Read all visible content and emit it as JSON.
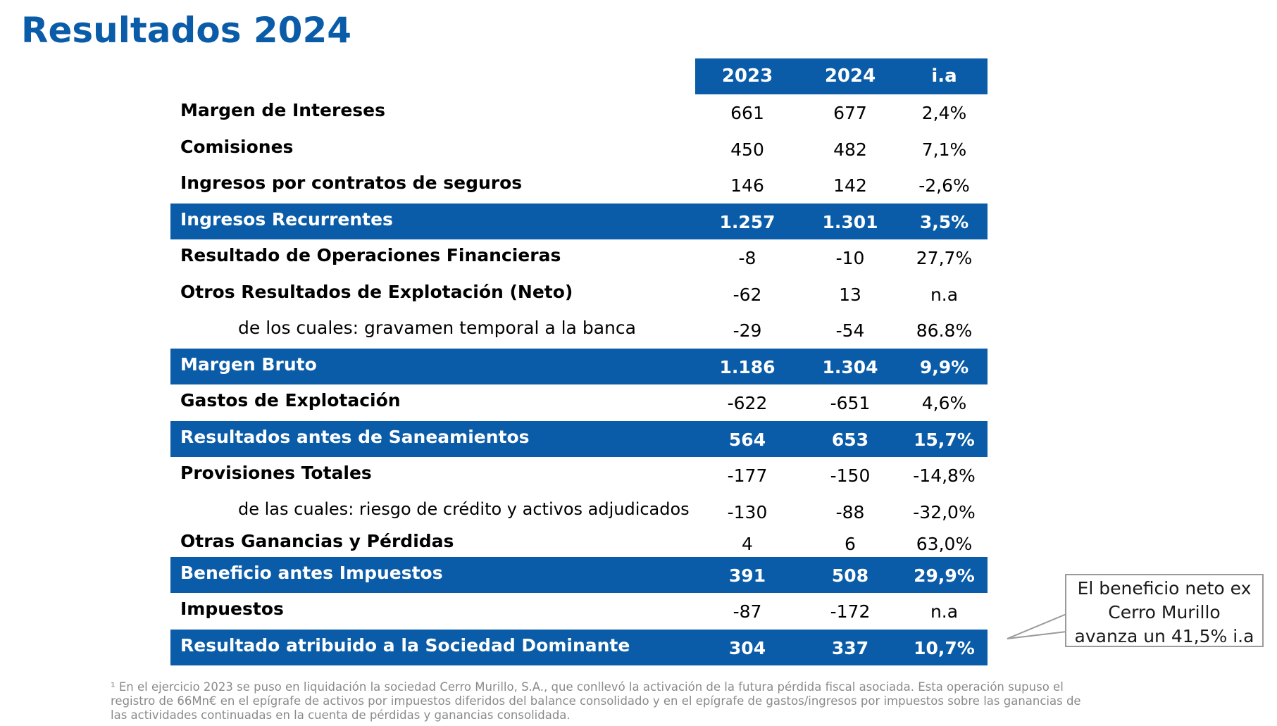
{
  "title": "Resultados 2024",
  "colors": {
    "accent": "#0a5ca8"
  },
  "table": {
    "headers": [
      "2023",
      "2024",
      "i.a"
    ],
    "rows": [
      {
        "label": "Margen de Intereses",
        "v2023": "661",
        "v2024": "677",
        "ia": "2,4%",
        "style": "normal"
      },
      {
        "label": "Comisiones",
        "v2023": "450",
        "v2024": "482",
        "ia": "7,1%",
        "style": "normal"
      },
      {
        "label": "Ingresos por contratos de seguros",
        "v2023": "146",
        "v2024": "142",
        "ia": "-2,6%",
        "style": "normal"
      },
      {
        "label": "Ingresos Recurrentes",
        "v2023": "1.257",
        "v2024": "1.301",
        "ia": "3,5%",
        "style": "highlight"
      },
      {
        "label": "Resultado de Operaciones Financieras",
        "v2023": "-8",
        "v2024": "-10",
        "ia": "27,7%",
        "style": "normal"
      },
      {
        "label": "Otros Resultados de Explotación (Neto)",
        "v2023": "-62",
        "v2024": "13",
        "ia": "n.a",
        "style": "normal"
      },
      {
        "label": "de los cuales: gravamen temporal a la banca",
        "v2023": "-29",
        "v2024": "-54",
        "ia": "86.8%",
        "style": "sub"
      },
      {
        "label": "Margen Bruto",
        "v2023": "1.186",
        "v2024": "1.304",
        "ia": "9,9%",
        "style": "highlight"
      },
      {
        "label": "Gastos de Explotación",
        "v2023": "-622",
        "v2024": "-651",
        "ia": "4,6%",
        "style": "normal"
      },
      {
        "label": "Resultados antes de Saneamientos",
        "v2023": "564",
        "v2024": "653",
        "ia": "15,7%",
        "style": "highlight"
      },
      {
        "label": "Provisiones Totales",
        "v2023": "-177",
        "v2024": "-150",
        "ia": "-14,8%",
        "style": "normal"
      },
      {
        "label": "de las cuales: riesgo de crédito y activos adjudicados",
        "v2023": "-130",
        "v2024": "-88",
        "ia": "-32,0%",
        "style": "sub"
      },
      {
        "label": "Otras Ganancias y Pérdidas",
        "v2023": "4",
        "v2024": "6",
        "ia": "63,0%",
        "style": "normal"
      },
      {
        "label": "Beneficio antes Impuestos",
        "v2023": "391",
        "v2024": "508",
        "ia": "29,9%",
        "style": "highlight"
      },
      {
        "label": "Impuestos",
        "v2023": "-87",
        "v2024": "-172",
        "ia": "n.a",
        "style": "normal"
      },
      {
        "label": "Resultado atribuido a la Sociedad Dominante",
        "v2023": "304",
        "v2024": "337",
        "ia": "10,7%",
        "style": "highlight"
      }
    ]
  },
  "callout": {
    "lines": [
      "El beneficio neto ex",
      "Cerro Murillo",
      "avanza un 41,5% i.a"
    ]
  },
  "footnote": "¹ En el ejercicio 2023 se puso en liquidación la sociedad Cerro Murillo, S.A.,  que conllevó la activación de la futura pérdida fiscal asociada. Esta operación supuso el registro de 66Mn€ en el epígrafe de activos por impuestos diferidos del balance consolidado y en el epígrafe de gastos/ingresos por impuestos sobre las ganancias de las actividades continuadas en la cuenta de pérdidas y ganancias consolidada."
}
